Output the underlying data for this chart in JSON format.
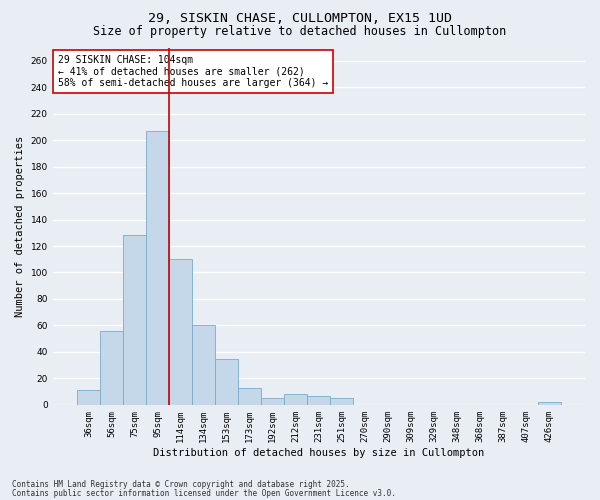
{
  "title_line1": "29, SISKIN CHASE, CULLOMPTON, EX15 1UD",
  "title_line2": "Size of property relative to detached houses in Cullompton",
  "xlabel": "Distribution of detached houses by size in Cullompton",
  "ylabel": "Number of detached properties",
  "bar_labels": [
    "36sqm",
    "56sqm",
    "75sqm",
    "95sqm",
    "114sqm",
    "134sqm",
    "153sqm",
    "173sqm",
    "192sqm",
    "212sqm",
    "231sqm",
    "251sqm",
    "270sqm",
    "290sqm",
    "309sqm",
    "329sqm",
    "348sqm",
    "368sqm",
    "387sqm",
    "407sqm",
    "426sqm"
  ],
  "bar_values": [
    11,
    56,
    128,
    207,
    110,
    60,
    35,
    13,
    5,
    8,
    7,
    5,
    0,
    0,
    0,
    0,
    0,
    0,
    0,
    0,
    2
  ],
  "bar_color": "#c5d8ea",
  "bar_edge_color": "#7aaac8",
  "ylim": [
    0,
    270
  ],
  "yticks": [
    0,
    20,
    40,
    60,
    80,
    100,
    120,
    140,
    160,
    180,
    200,
    220,
    240,
    260
  ],
  "vline_x": 3.5,
  "vline_color": "#cc0000",
  "annotation_text": "29 SISKIN CHASE: 104sqm\n← 41% of detached houses are smaller (262)\n58% of semi-detached houses are larger (364) →",
  "annotation_box_facecolor": "#ffffff",
  "annotation_box_edgecolor": "#cc0000",
  "footnote1": "Contains HM Land Registry data © Crown copyright and database right 2025.",
  "footnote2": "Contains public sector information licensed under the Open Government Licence v3.0.",
  "bg_color": "#e8eef4",
  "plot_bg_color": "#e8eef4",
  "grid_color": "#ffffff",
  "title_fontsize": 9.5,
  "subtitle_fontsize": 8.5,
  "tick_fontsize": 6.5,
  "ylabel_fontsize": 7.5,
  "xlabel_fontsize": 7.5,
  "annotation_fontsize": 7,
  "footnote_fontsize": 5.5
}
